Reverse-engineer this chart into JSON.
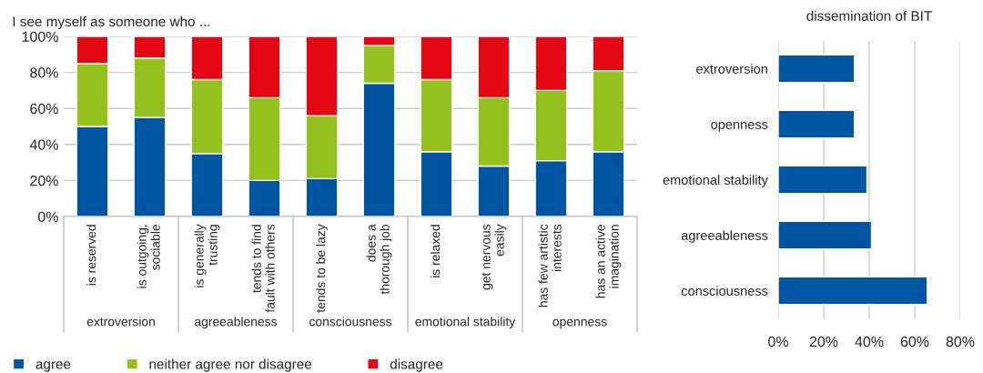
{
  "chart_data": [
    {
      "type": "bar",
      "title": "I see myself as someone who ...",
      "stacked": true,
      "categories": [
        "is reserved",
        "is outgoing,\nsociable",
        "is generally\ntrusting",
        "tends to find\nfault with others",
        "tends to be lazy",
        "does a\nthorough job",
        "is relaxed",
        "get nervous\neasily",
        "has few artistic\ninterests",
        "has an active\nimagination"
      ],
      "series": [
        {
          "name": "agree",
          "color": "#0055a2",
          "values": [
            50,
            55,
            35,
            20,
            21,
            74,
            36,
            28,
            31,
            36
          ]
        },
        {
          "name": "neither agree nor disagree",
          "color": "#95c11f",
          "values": [
            35,
            33,
            41,
            46,
            35,
            21,
            40,
            38,
            39,
            45
          ]
        },
        {
          "name": "disagree",
          "color": "#e30613",
          "values": [
            15,
            12,
            24,
            34,
            44,
            5,
            24,
            34,
            30,
            19
          ]
        }
      ],
      "annotations": [
        "extroversion",
        "agreeableness",
        "consciousness",
        "emotional stability",
        "openness"
      ],
      "ylim": [
        0,
        100
      ],
      "yticks": [
        {
          "value": 0,
          "label": "0%"
        },
        {
          "value": 20,
          "label": "20%"
        },
        {
          "value": 40,
          "label": "40%"
        },
        {
          "value": 60,
          "label": "60%"
        },
        {
          "value": 80,
          "label": "80%"
        },
        {
          "value": 100,
          "label": "100%"
        }
      ],
      "grid": "y",
      "legend": "bottom"
    },
    {
      "type": "bar",
      "title": "dissemination of BIT",
      "orientation": "horizontal",
      "categories": [
        "extroversion",
        "openness",
        "emotional stability",
        "agreeableness",
        "consciousness"
      ],
      "series": [
        {
          "color": "#0055a2",
          "values": [
            33.5,
            33.5,
            39,
            41,
            65.5
          ]
        }
      ],
      "xlim": [
        0,
        80
      ],
      "xticks": [
        {
          "value": 0,
          "label": "0%"
        },
        {
          "value": 20,
          "label": "20%"
        },
        {
          "value": 40,
          "label": "40%"
        },
        {
          "value": 60,
          "label": "60%"
        },
        {
          "value": 80,
          "label": "80%"
        }
      ],
      "grid": "x"
    }
  ]
}
